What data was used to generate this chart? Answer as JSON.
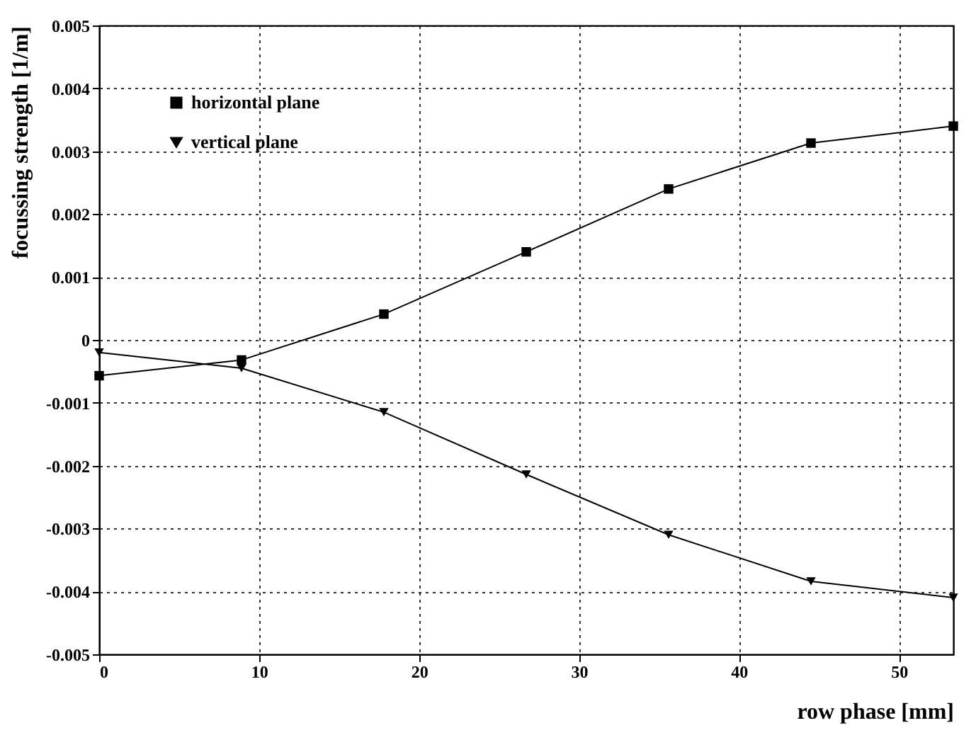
{
  "chart_data": {
    "type": "line",
    "xlabel": "row phase [mm]",
    "ylabel": "focussing strength [1/m]",
    "x": [
      0,
      8.9,
      17.8,
      26.7,
      35.6,
      44.5,
      53.4
    ],
    "series": [
      {
        "name": "horizontal plane",
        "color": "#000000",
        "marker": "square",
        "values": [
          -0.00057,
          -0.00032,
          0.00041,
          0.0014,
          0.0024,
          0.00313,
          0.0034
        ]
      },
      {
        "name": "vertical plane",
        "color": "#000000",
        "marker": "triangle",
        "values": [
          -0.0002,
          -0.00045,
          -0.00115,
          -0.00214,
          -0.0031,
          -0.00384,
          -0.0041
        ]
      }
    ],
    "xlim": [
      0,
      53.4
    ],
    "xticks": [
      0,
      10,
      20,
      30,
      40,
      50
    ],
    "ylim": [
      -0.005,
      0.005
    ],
    "yticks": [
      -0.005,
      -0.004,
      -0.003,
      -0.002,
      -0.001,
      0,
      0.001,
      0.002,
      0.003,
      0.004,
      0.005
    ],
    "grid": true,
    "legend": "top left",
    "line_style": "solid"
  }
}
